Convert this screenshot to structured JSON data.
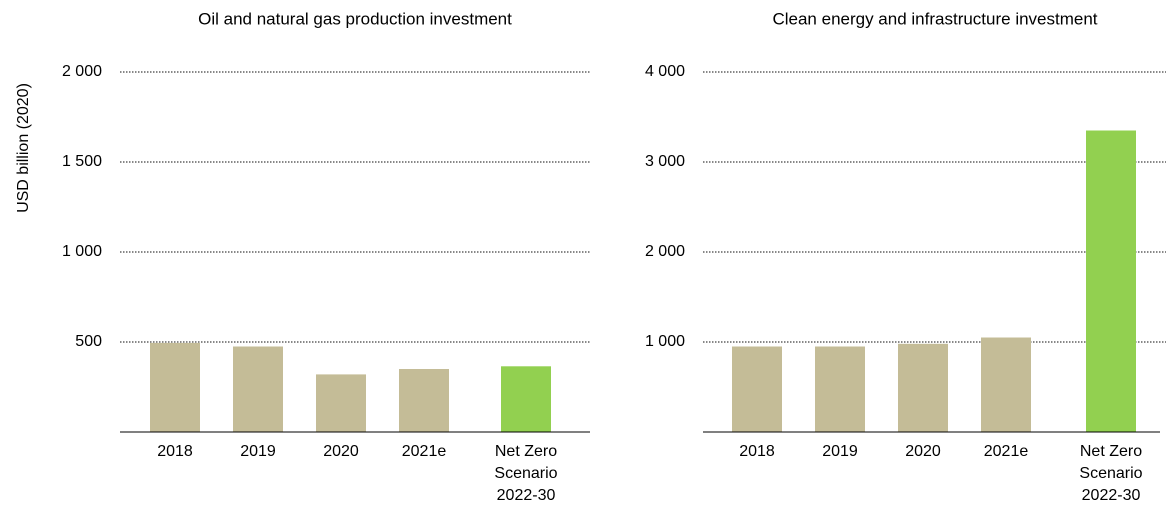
{
  "chart_data": [
    {
      "type": "bar",
      "title": "Oil and natural gas production investment",
      "y_label": "USD billion (2020)",
      "categories": [
        "2018",
        "2019",
        "2020",
        "2021e",
        "Net Zero\nScenario\n2022-30"
      ],
      "values": [
        495,
        475,
        320,
        350,
        365
      ],
      "colors": [
        "#c4bc97",
        "#c4bc97",
        "#c4bc97",
        "#c4bc97",
        "#92d050"
      ],
      "ylim": [
        0,
        2000
      ],
      "yticks": [
        500,
        {
          "value": 1000,
          "label": "1 000"
        },
        {
          "value": 1500,
          "label": "1 500"
        },
        {
          "value": 2000,
          "label": "2 000"
        }
      ],
      "grid": true
    },
    {
      "type": "bar",
      "title": "Clean energy and infrastructure investment",
      "categories": [
        "2018",
        "2019",
        "2020",
        "2021e",
        "Net Zero\nScenario\n2022-30"
      ],
      "values": [
        950,
        950,
        980,
        1050,
        3350
      ],
      "colors": [
        "#c4bc97",
        "#c4bc97",
        "#c4bc97",
        "#c4bc97",
        "#92d050"
      ],
      "ylim": [
        0,
        4000
      ],
      "yticks": [
        {
          "value": 1000,
          "label": "1 000"
        },
        {
          "value": 2000,
          "label": "2 000"
        },
        {
          "value": 3000,
          "label": "3 000"
        },
        {
          "value": 4000,
          "label": "4 000"
        }
      ],
      "grid": true
    }
  ]
}
